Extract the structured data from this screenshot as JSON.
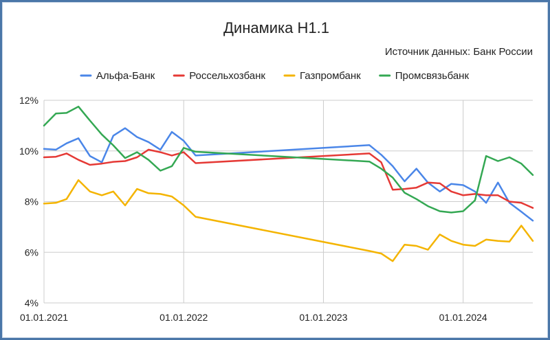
{
  "chart_data": {
    "type": "line",
    "title": "Динамика Н1.1",
    "subtitle": "Источник данных: Банк России",
    "xlabel": "",
    "ylabel": "",
    "ylim": [
      4,
      12
    ],
    "y_ticks": [
      {
        "value": 4,
        "label": "4%"
      },
      {
        "value": 6,
        "label": "6%"
      },
      {
        "value": 8,
        "label": "8%"
      },
      {
        "value": 10,
        "label": "10%"
      },
      {
        "value": 12,
        "label": "12%"
      }
    ],
    "x_range": [
      "2021-01-01",
      "2024-07-01"
    ],
    "x_ticks": [
      {
        "date": "2021-01-01",
        "label": "01.01.2021"
      },
      {
        "date": "2022-01-01",
        "label": "01.01.2022"
      },
      {
        "date": "2023-01-01",
        "label": "01.01.2023"
      },
      {
        "date": "2024-01-01",
        "label": "01.01.2024"
      }
    ],
    "grid": true,
    "legend_position": "top",
    "series": [
      {
        "name": "Альфа-Банк",
        "color": "#4a86e8",
        "points": [
          [
            "2021-01-01",
            10.08
          ],
          [
            "2021-02-01",
            10.05
          ],
          [
            "2021-03-01",
            10.3
          ],
          [
            "2021-04-01",
            10.5
          ],
          [
            "2021-05-01",
            9.8
          ],
          [
            "2021-06-01",
            9.55
          ],
          [
            "2021-07-01",
            10.6
          ],
          [
            "2021-08-01",
            10.9
          ],
          [
            "2021-09-01",
            10.55
          ],
          [
            "2021-10-01",
            10.35
          ],
          [
            "2021-11-01",
            10.05
          ],
          [
            "2021-12-01",
            10.75
          ],
          [
            "2022-01-01",
            10.4
          ],
          [
            "2022-02-01",
            9.82
          ],
          [
            "2023-05-01",
            10.23
          ],
          [
            "2023-06-01",
            9.85
          ],
          [
            "2023-07-01",
            9.4
          ],
          [
            "2023-08-01",
            8.8
          ],
          [
            "2023-09-01",
            9.3
          ],
          [
            "2023-10-01",
            8.75
          ],
          [
            "2023-11-01",
            8.4
          ],
          [
            "2023-12-01",
            8.7
          ],
          [
            "2024-01-01",
            8.65
          ],
          [
            "2024-02-01",
            8.4
          ],
          [
            "2024-03-01",
            7.95
          ],
          [
            "2024-04-01",
            8.75
          ],
          [
            "2024-05-01",
            7.95
          ],
          [
            "2024-06-01",
            7.6
          ],
          [
            "2024-07-01",
            7.25
          ]
        ]
      },
      {
        "name": "Россельхозбанк",
        "color": "#e53935",
        "points": [
          [
            "2021-01-01",
            9.75
          ],
          [
            "2021-02-01",
            9.77
          ],
          [
            "2021-03-01",
            9.9
          ],
          [
            "2021-04-01",
            9.65
          ],
          [
            "2021-05-01",
            9.45
          ],
          [
            "2021-06-01",
            9.5
          ],
          [
            "2021-07-01",
            9.57
          ],
          [
            "2021-08-01",
            9.6
          ],
          [
            "2021-09-01",
            9.75
          ],
          [
            "2021-10-01",
            10.05
          ],
          [
            "2021-11-01",
            9.95
          ],
          [
            "2021-12-01",
            9.82
          ],
          [
            "2022-01-01",
            9.95
          ],
          [
            "2022-02-01",
            9.52
          ],
          [
            "2023-05-01",
            9.9
          ],
          [
            "2023-06-01",
            9.55
          ],
          [
            "2023-07-01",
            8.47
          ],
          [
            "2023-08-01",
            8.5
          ],
          [
            "2023-09-01",
            8.55
          ],
          [
            "2023-10-01",
            8.75
          ],
          [
            "2023-11-01",
            8.72
          ],
          [
            "2023-12-01",
            8.4
          ],
          [
            "2024-01-01",
            8.25
          ],
          [
            "2024-02-01",
            8.3
          ],
          [
            "2024-03-01",
            8.25
          ],
          [
            "2024-04-01",
            8.25
          ],
          [
            "2024-05-01",
            8.0
          ],
          [
            "2024-06-01",
            7.95
          ],
          [
            "2024-07-01",
            7.75
          ]
        ]
      },
      {
        "name": "Газпромбанк",
        "color": "#f4b400",
        "points": [
          [
            "2021-01-01",
            7.92
          ],
          [
            "2021-02-01",
            7.95
          ],
          [
            "2021-03-01",
            8.1
          ],
          [
            "2021-04-01",
            8.85
          ],
          [
            "2021-05-01",
            8.4
          ],
          [
            "2021-06-01",
            8.25
          ],
          [
            "2021-07-01",
            8.4
          ],
          [
            "2021-08-01",
            7.85
          ],
          [
            "2021-09-01",
            8.5
          ],
          [
            "2021-10-01",
            8.33
          ],
          [
            "2021-11-01",
            8.3
          ],
          [
            "2021-12-01",
            8.2
          ],
          [
            "2022-01-01",
            7.85
          ],
          [
            "2022-02-01",
            7.4
          ],
          [
            "2023-05-01",
            6.05
          ],
          [
            "2023-06-01",
            5.95
          ],
          [
            "2023-07-01",
            5.65
          ],
          [
            "2023-08-01",
            6.3
          ],
          [
            "2023-09-01",
            6.25
          ],
          [
            "2023-10-01",
            6.1
          ],
          [
            "2023-11-01",
            6.7
          ],
          [
            "2023-12-01",
            6.45
          ],
          [
            "2024-01-01",
            6.3
          ],
          [
            "2024-02-01",
            6.25
          ],
          [
            "2024-03-01",
            6.5
          ],
          [
            "2024-04-01",
            6.45
          ],
          [
            "2024-05-01",
            6.42
          ],
          [
            "2024-06-01",
            7.05
          ],
          [
            "2024-07-01",
            6.45
          ]
        ]
      },
      {
        "name": "Промсвязьбанк",
        "color": "#34a853",
        "points": [
          [
            "2021-01-01",
            11.0
          ],
          [
            "2021-02-01",
            11.48
          ],
          [
            "2021-03-01",
            11.5
          ],
          [
            "2021-04-01",
            11.75
          ],
          [
            "2021-05-01",
            11.2
          ],
          [
            "2021-06-01",
            10.65
          ],
          [
            "2021-07-01",
            10.22
          ],
          [
            "2021-08-01",
            9.72
          ],
          [
            "2021-09-01",
            9.95
          ],
          [
            "2021-10-01",
            9.65
          ],
          [
            "2021-11-01",
            9.22
          ],
          [
            "2021-12-01",
            9.4
          ],
          [
            "2022-01-01",
            10.12
          ],
          [
            "2022-02-01",
            9.97
          ],
          [
            "2023-05-01",
            9.58
          ],
          [
            "2023-06-01",
            9.3
          ],
          [
            "2023-07-01",
            8.95
          ],
          [
            "2023-08-01",
            8.35
          ],
          [
            "2023-09-01",
            8.1
          ],
          [
            "2023-10-01",
            7.82
          ],
          [
            "2023-11-01",
            7.62
          ],
          [
            "2023-12-01",
            7.57
          ],
          [
            "2024-01-01",
            7.62
          ],
          [
            "2024-02-01",
            8.05
          ],
          [
            "2024-03-01",
            9.8
          ],
          [
            "2024-04-01",
            9.6
          ],
          [
            "2024-05-01",
            9.75
          ],
          [
            "2024-06-01",
            9.5
          ],
          [
            "2024-07-01",
            9.05
          ]
        ]
      }
    ]
  }
}
